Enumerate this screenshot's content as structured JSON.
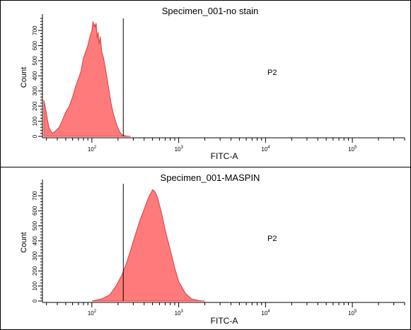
{
  "chart_data": [
    {
      "type": "area",
      "title": "Specimen_001-no stain",
      "xlabel": "FITC-A",
      "ylabel": "Count",
      "x_scale": "log",
      "xlim": [
        28,
        400000
      ],
      "ylim": [
        0,
        780
      ],
      "x_tick_labels": [
        {
          "value": 100,
          "base": "10",
          "exp": "2"
        },
        {
          "value": 1000,
          "base": "10",
          "exp": "3"
        },
        {
          "value": 10000,
          "base": "10",
          "exp": "4"
        },
        {
          "value": 100000,
          "base": "10",
          "exp": "5"
        }
      ],
      "y_ticks": [
        0,
        100,
        200,
        300,
        400,
        500,
        600,
        700
      ],
      "gate": {
        "name": "P2",
        "x_start": 230
      },
      "fill_color": "#ff7a7a",
      "edge_color": "#e33b3b",
      "x": [
        28,
        30,
        32,
        35,
        38,
        42,
        46,
        50,
        55,
        60,
        65,
        70,
        75,
        80,
        85,
        90,
        95,
        100,
        103,
        106,
        108,
        110,
        112,
        115,
        118,
        121,
        125,
        130,
        136,
        142,
        150,
        158,
        165,
        175,
        185,
        195,
        205,
        215,
        225,
        240,
        260,
        280
      ],
      "y": [
        240,
        150,
        60,
        20,
        35,
        60,
        110,
        160,
        200,
        260,
        330,
        380,
        430,
        520,
        560,
        600,
        660,
        700,
        760,
        730,
        740,
        720,
        750,
        650,
        690,
        610,
        660,
        560,
        520,
        460,
        380,
        300,
        230,
        160,
        110,
        70,
        40,
        20,
        10,
        4,
        1,
        0
      ]
    },
    {
      "type": "area",
      "title": "Specimen_001-MASPIN",
      "xlabel": "FITC-A",
      "ylabel": "Count",
      "x_scale": "log",
      "xlim": [
        28,
        400000
      ],
      "ylim": [
        0,
        780
      ],
      "x_tick_labels": [
        {
          "value": 100,
          "base": "10",
          "exp": "2"
        },
        {
          "value": 1000,
          "base": "10",
          "exp": "3"
        },
        {
          "value": 10000,
          "base": "10",
          "exp": "4"
        },
        {
          "value": 100000,
          "base": "10",
          "exp": "5"
        }
      ],
      "y_ticks": [
        0,
        100,
        200,
        300,
        400,
        500,
        600,
        700
      ],
      "gate": {
        "name": "P2",
        "x_start": 230
      },
      "fill_color": "#ff7a7a",
      "edge_color": "#e33b3b",
      "x": [
        100,
        130,
        160,
        190,
        220,
        250,
        280,
        320,
        360,
        400,
        430,
        460,
        480,
        500,
        520,
        540,
        570,
        600,
        650,
        700,
        800,
        900,
        1000,
        1200,
        1400,
        1700,
        2000
      ],
      "y": [
        0,
        15,
        40,
        100,
        170,
        250,
        340,
        450,
        540,
        610,
        660,
        700,
        720,
        740,
        735,
        720,
        690,
        640,
        560,
        470,
        340,
        220,
        130,
        50,
        15,
        3,
        0
      ]
    }
  ]
}
